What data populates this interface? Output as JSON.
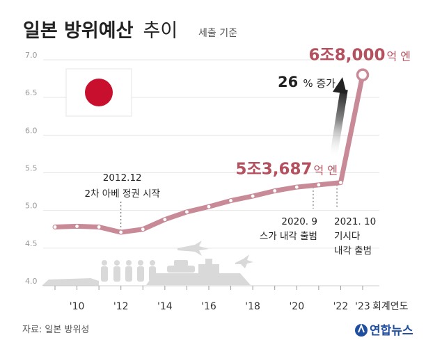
{
  "title": {
    "main": "일본 방위예산",
    "sub": "추이",
    "note": "세출 기준"
  },
  "source": "자료: 일본 방위성",
  "logo": {
    "text": "연합뉴스",
    "color": "#1f4e9e"
  },
  "colors": {
    "line": "#c98a97",
    "accent": "#b5505f",
    "grid": "#e6e6e6",
    "text": "#222222"
  },
  "chart_data": {
    "type": "line",
    "unit_label": "회계연도",
    "x": [
      2009,
      2010,
      2011,
      2012,
      2013,
      2014,
      2015,
      2016,
      2017,
      2018,
      2019,
      2020,
      2021,
      2022,
      2023
    ],
    "y": [
      4.78,
      4.79,
      4.78,
      4.71,
      4.75,
      4.88,
      4.98,
      5.05,
      5.13,
      5.19,
      5.26,
      5.31,
      5.34,
      5.37,
      6.8
    ],
    "x_tick_labels": [
      {
        "x": 2010,
        "label": "'10"
      },
      {
        "x": 2012,
        "label": "'12"
      },
      {
        "x": 2014,
        "label": "'14"
      },
      {
        "x": 2016,
        "label": "'16"
      },
      {
        "x": 2018,
        "label": "'18"
      },
      {
        "x": 2020,
        "label": "'20"
      },
      {
        "x": 2022,
        "label": "'22"
      },
      {
        "x": 2023,
        "label": "'23"
      }
    ],
    "y_ticks": [
      "4.0",
      "4.5",
      "5.0",
      "5.5",
      "6.0",
      "6.5",
      "7.0"
    ],
    "ylim": [
      4.0,
      7.0
    ],
    "grid": true,
    "annotations": [
      {
        "x": 2012,
        "lines": [
          "2012.12",
          "2차 아베 정권 시작"
        ]
      },
      {
        "x": 2020.75,
        "lines": [
          "2020. 9",
          "스가 내각 출범"
        ]
      },
      {
        "x": 2021.83,
        "lines": [
          "2021. 10",
          "기시다",
          "내각 출범"
        ]
      }
    ],
    "value_labels": [
      {
        "x": 2022,
        "big": "5조3,687",
        "small": "억 엔"
      },
      {
        "x": 2023,
        "big": "6조8,000",
        "small": "억 엔"
      }
    ],
    "growth": {
      "big": "26",
      "small": "% 증가"
    }
  }
}
